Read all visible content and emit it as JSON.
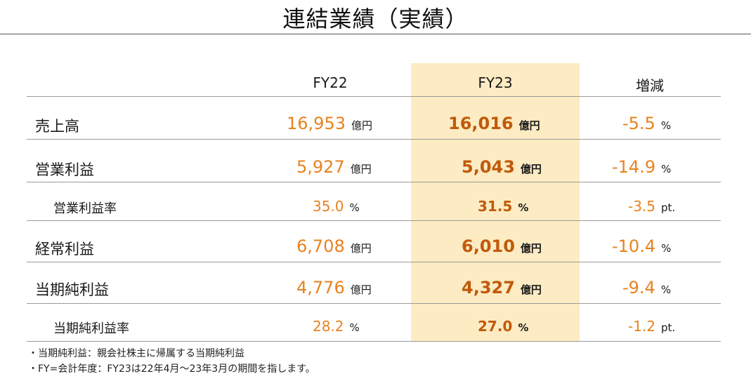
{
  "page": {
    "title": "連結業績（実績）"
  },
  "table": {
    "headers": {
      "fy22": "FY22",
      "fy23": "FY23",
      "change": "増減"
    },
    "rows": [
      {
        "label": "売上高",
        "fy22": "16,953",
        "fy22_unit": "億円",
        "fy23": "16,016",
        "fy23_unit": "億円",
        "change": "-5.5",
        "change_unit": "%"
      },
      {
        "label": "営業利益",
        "fy22": "5,927",
        "fy22_unit": "億円",
        "fy23": "5,043",
        "fy23_unit": "億円",
        "change": "-14.9",
        "change_unit": "%"
      },
      {
        "label": "営業利益率",
        "fy22": "35.0",
        "fy22_unit": "%",
        "fy23": "31.5",
        "fy23_unit": "%",
        "change": "-3.5",
        "change_unit": "pt."
      },
      {
        "label": "経常利益",
        "fy22": "6,708",
        "fy22_unit": "億円",
        "fy23": "6,010",
        "fy23_unit": "億円",
        "change": "-10.4",
        "change_unit": "%"
      },
      {
        "label": "当期純利益",
        "fy22": "4,776",
        "fy22_unit": "億円",
        "fy23": "4,327",
        "fy23_unit": "億円",
        "change": "-9.4",
        "change_unit": "%"
      },
      {
        "label": "当期純利益率",
        "fy22": "28.2",
        "fy22_unit": "%",
        "fy23": "27.0",
        "fy23_unit": "%",
        "change": "-1.2",
        "change_unit": "pt."
      }
    ]
  },
  "notes": [
    "・当期純利益：親会社株主に帰属する当期純利益",
    "・FY=会計年度：FY23は22年4月～23年3月の期間を指します。"
  ],
  "colors": {
    "highlight": "#fdebc3",
    "value": "#e8821e",
    "value_bold": "#c05a0a"
  }
}
